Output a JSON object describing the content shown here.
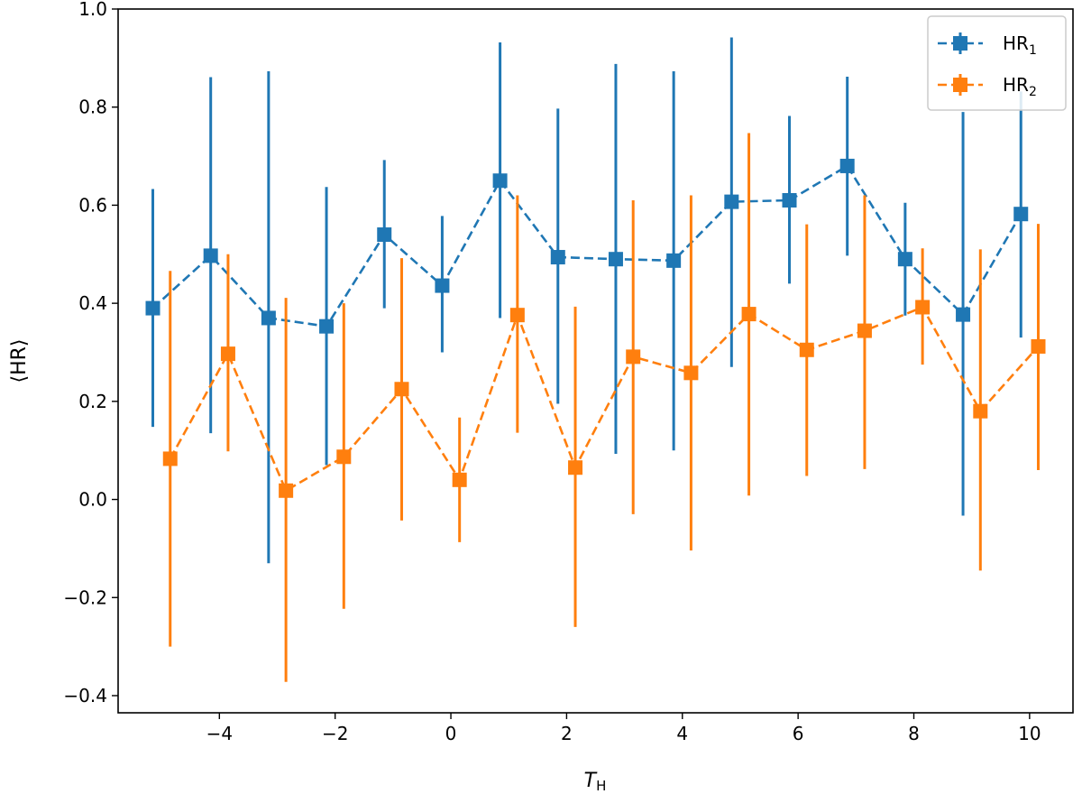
{
  "chart_data": {
    "type": "scatter",
    "xlabel": "T",
    "xlabel_sub": "H",
    "ylabel": "⟨HR⟩",
    "xlim": [
      -5.75,
      10.75
    ],
    "ylim": [
      -0.435,
      1.0
    ],
    "xticks": [
      -4,
      -2,
      0,
      2,
      4,
      6,
      8,
      10
    ],
    "yticks": [
      -0.4,
      -0.2,
      0.0,
      0.2,
      0.4,
      0.6,
      0.8,
      1.0
    ],
    "xtick_labels": [
      "−4",
      "−2",
      "0",
      "2",
      "4",
      "6",
      "8",
      "10"
    ],
    "ytick_labels": [
      "−0.4",
      "−0.2",
      "0.0",
      "0.2",
      "0.4",
      "0.6",
      "0.8",
      "1.0"
    ],
    "grid": false,
    "legend_position": "top-right",
    "series": [
      {
        "name": "HR",
        "name_sub": "1",
        "color": "#1f77b4",
        "linestyle": "dashed",
        "marker": "square",
        "x": [
          -5.15,
          -4.15,
          -3.15,
          -2.15,
          -1.15,
          -0.15,
          0.85,
          1.85,
          2.85,
          3.85,
          4.85,
          5.85,
          6.85,
          7.85,
          8.85,
          9.85
        ],
        "y": [
          0.39,
          0.497,
          0.37,
          0.353,
          0.54,
          0.436,
          0.65,
          0.494,
          0.49,
          0.487,
          0.607,
          0.61,
          0.68,
          0.49,
          0.377,
          0.582
        ],
        "y_low": [
          0.148,
          0.135,
          -0.13,
          0.07,
          0.39,
          0.3,
          0.37,
          0.195,
          0.093,
          0.1,
          0.27,
          0.44,
          0.497,
          0.375,
          -0.033,
          0.33
        ],
        "y_high": [
          0.633,
          0.861,
          0.873,
          0.637,
          0.692,
          0.578,
          0.932,
          0.797,
          0.888,
          0.873,
          0.942,
          0.782,
          0.862,
          0.605,
          0.79,
          0.832
        ]
      },
      {
        "name": "HR",
        "name_sub": "2",
        "color": "#ff7f0e",
        "linestyle": "dashed",
        "marker": "square",
        "x": [
          -4.85,
          -3.85,
          -2.85,
          -1.85,
          -0.85,
          0.15,
          1.15,
          2.15,
          3.15,
          4.15,
          5.15,
          6.15,
          7.15,
          8.15,
          9.15,
          10.15
        ],
        "y": [
          0.083,
          0.297,
          0.018,
          0.087,
          0.225,
          0.04,
          0.376,
          0.065,
          0.291,
          0.258,
          0.378,
          0.305,
          0.344,
          0.392,
          0.18,
          0.312
        ],
        "y_low": [
          -0.3,
          0.098,
          -0.372,
          -0.223,
          -0.043,
          -0.087,
          0.136,
          -0.26,
          -0.03,
          -0.104,
          0.008,
          0.048,
          0.062,
          0.275,
          -0.145,
          0.06
        ],
        "y_high": [
          0.466,
          0.5,
          0.411,
          0.4,
          0.492,
          0.167,
          0.62,
          0.393,
          0.61,
          0.62,
          0.747,
          0.561,
          0.62,
          0.512,
          0.51,
          0.562
        ]
      }
    ]
  }
}
